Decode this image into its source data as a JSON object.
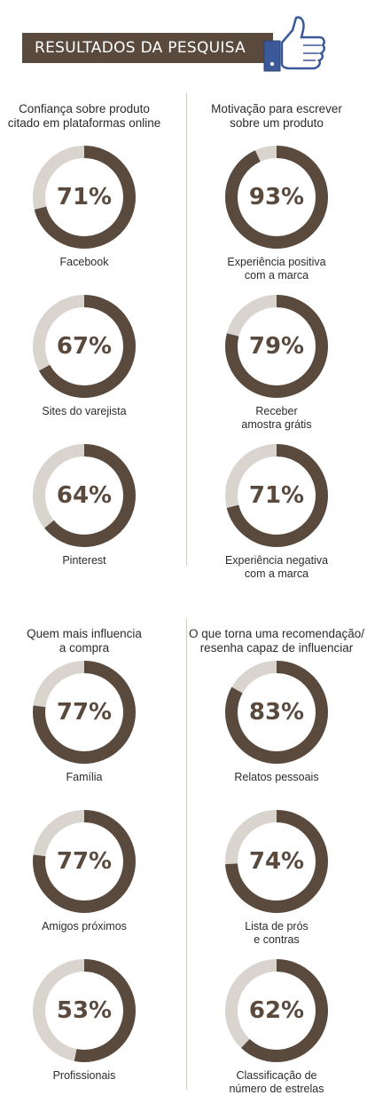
{
  "header": {
    "title": "RESULTADOS DA PESQUISA",
    "icon": "thumbs-up-icon"
  },
  "colors": {
    "accent": "#5a4a3e",
    "track": "#d9d4ce"
  },
  "chart_data": [
    {
      "type": "pie",
      "title": "Confiança sobre produto\ncitado em plataformas online",
      "slices": [
        {
          "label": "Facebook",
          "value": 71
        },
        {
          "label": "Sites do varejista",
          "value": 67
        },
        {
          "label": "Pinterest",
          "value": 64
        }
      ]
    },
    {
      "type": "pie",
      "title": "Motivação para escrever\nsobre um produto",
      "slices": [
        {
          "label": "Experiência positiva\ncom a marca",
          "value": 93
        },
        {
          "label": "Receber\namostra grátis",
          "value": 79
        },
        {
          "label": "Experiência negativa\ncom a marca",
          "value": 71
        }
      ]
    },
    {
      "type": "pie",
      "title": "Quem mais influencia\na compra",
      "slices": [
        {
          "label": "Família",
          "value": 77
        },
        {
          "label": "Amigos próximos",
          "value": 77
        },
        {
          "label": "Profissionais",
          "value": 53
        }
      ]
    },
    {
      "type": "pie",
      "title": "O que torna uma recomendação/\nresenha capaz de influenciar",
      "slices": [
        {
          "label": "Relatos pessoais",
          "value": 83
        },
        {
          "label": "Lista de prós\ne contras",
          "value": 74
        },
        {
          "label": "Classificação de\nnúmero de estrelas",
          "value": 62
        }
      ]
    }
  ]
}
